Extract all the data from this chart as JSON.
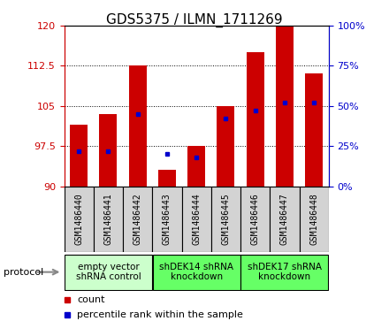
{
  "title": "GDS5375 / ILMN_1711269",
  "categories": [
    "GSM1486440",
    "GSM1486441",
    "GSM1486442",
    "GSM1486443",
    "GSM1486444",
    "GSM1486445",
    "GSM1486446",
    "GSM1486447",
    "GSM1486448"
  ],
  "count_values": [
    101.5,
    103.5,
    112.5,
    93.0,
    97.5,
    105.0,
    115.0,
    120.0,
    111.0
  ],
  "percentile_values": [
    22,
    22,
    45,
    20,
    18,
    42,
    47,
    52,
    52
  ],
  "ylim_left": [
    90,
    120
  ],
  "ylim_right": [
    0,
    100
  ],
  "yticks_left": [
    90,
    97.5,
    105,
    112.5,
    120
  ],
  "yticks_right": [
    0,
    25,
    50,
    75,
    100
  ],
  "ybaseline": 90,
  "groups": [
    {
      "label": "empty vector\nshRNA control",
      "start": 0,
      "end": 3,
      "color": "#ccffcc"
    },
    {
      "label": "shDEK14 shRNA\nknockdown",
      "start": 3,
      "end": 6,
      "color": "#66ff66"
    },
    {
      "label": "shDEK17 shRNA\nknockdown",
      "start": 6,
      "end": 9,
      "color": "#66ff66"
    }
  ],
  "bar_color": "#cc0000",
  "percentile_color": "#0000cc",
  "bar_width": 0.6,
  "left_axis_color": "#cc0000",
  "right_axis_color": "#0000cc",
  "tick_fontsize": 8,
  "group_fontsize": 7.5,
  "legend_fontsize": 8,
  "title_fontsize": 11
}
